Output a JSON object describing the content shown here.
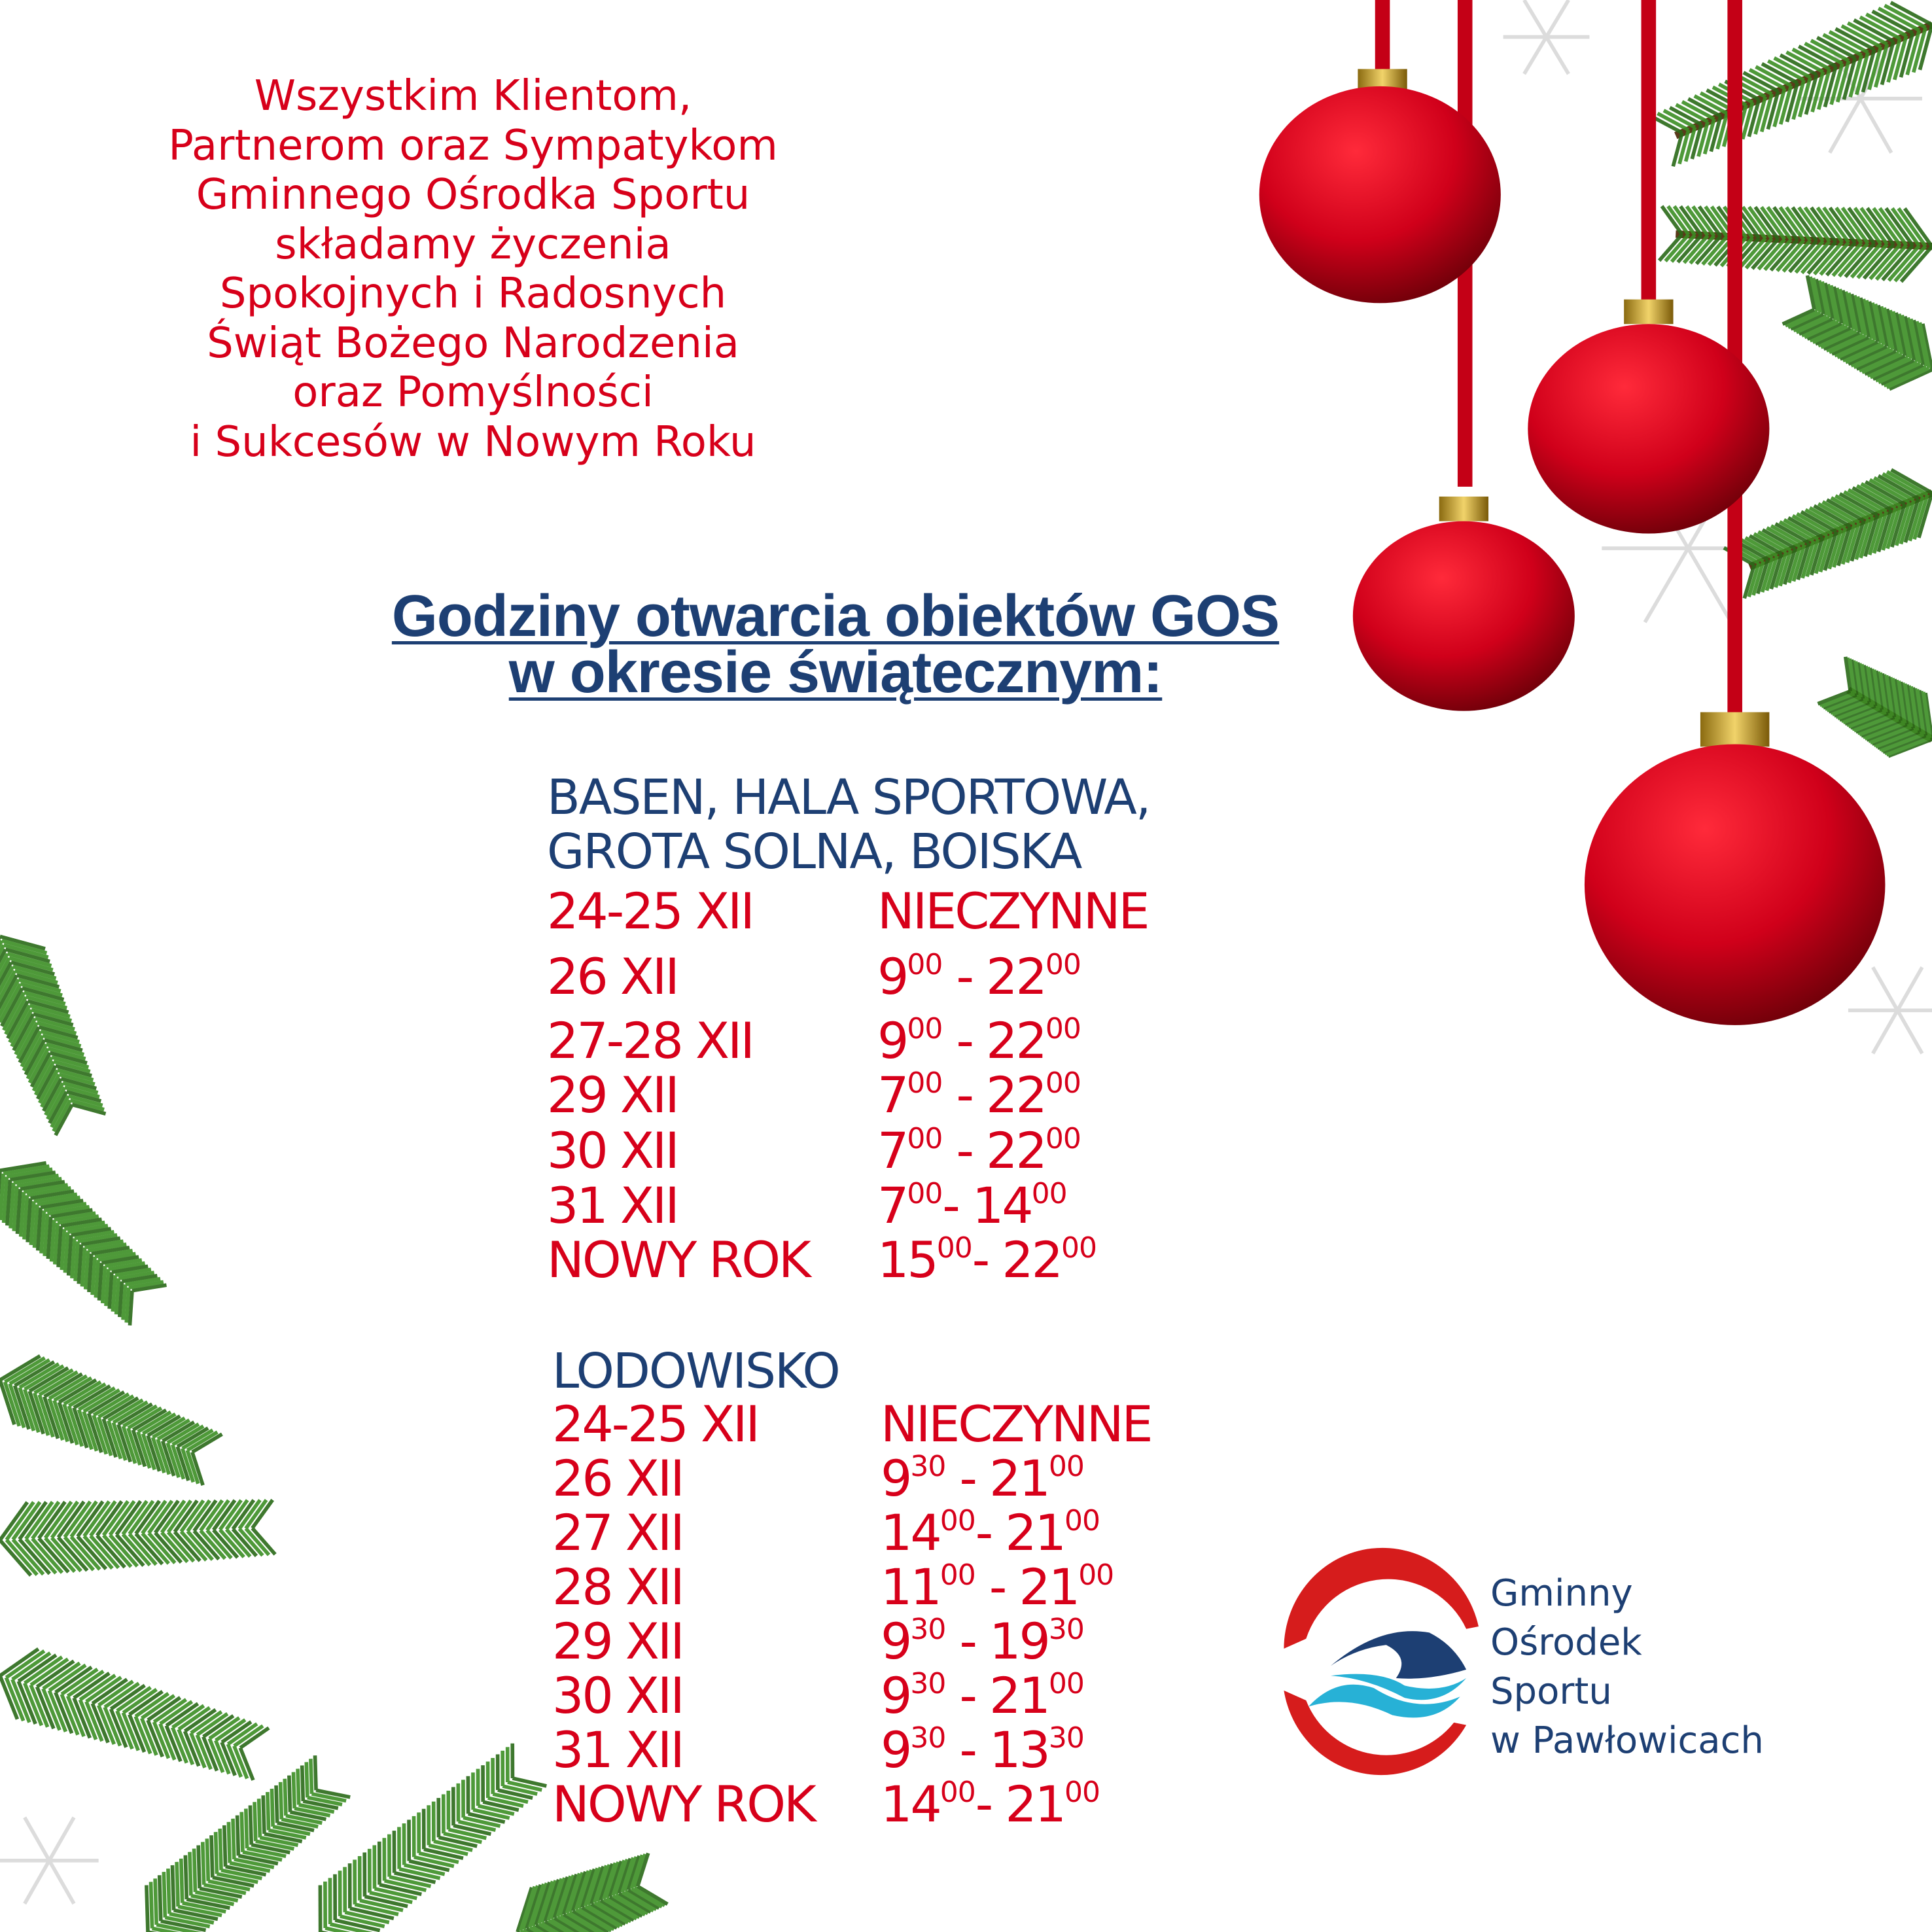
{
  "greeting": {
    "lines": [
      "Wszystkim Klientom,",
      "Partnerom oraz Sympatykom",
      "Gminnego Ośrodka Sportu",
      "składamy życzenia",
      "Spokojnych i Radosnych",
      "Świąt Bożego Narodzenia",
      "oraz Pomyślności",
      "i Sukcesów w Nowym Roku"
    ]
  },
  "title": {
    "line1": "Godziny otwarcia obiektów GOS",
    "line2": "w okresie świątecznym:"
  },
  "sections": [
    {
      "heading": [
        "BASEN, HALA SPORTOWA,",
        "GROTA SOLNA, BOISKA"
      ],
      "rows": [
        {
          "date": "24-25 XII",
          "closed": "NIECZYNNE"
        },
        {
          "date": "26 XII",
          "start": "9",
          "start_min": "00",
          "sep": " - ",
          "end": "22",
          "end_min": "00"
        },
        {
          "date": "27-28 XII",
          "start": "9",
          "start_min": "00",
          "sep": " - ",
          "end": "22",
          "end_min": "00"
        },
        {
          "date": "29 XII",
          "start": "7",
          "start_min": "00",
          "sep": " - ",
          "end": "22",
          "end_min": "00"
        },
        {
          "date": "30 XII",
          "start": "7",
          "start_min": "00",
          "sep": " - ",
          "end": "22",
          "end_min": "00"
        },
        {
          "date": "31 XII",
          "start": "7",
          "start_min": "00",
          "sep": "- ",
          "end": "14",
          "end_min": "00"
        },
        {
          "date": "NOWY ROK",
          "start": "15",
          "start_min": "00",
          "sep": "- ",
          "end": "22",
          "end_min": "00"
        }
      ]
    },
    {
      "heading": [
        "LODOWISKO"
      ],
      "rows": [
        {
          "date": "24-25 XII",
          "closed": "NIECZYNNE"
        },
        {
          "date": "26 XII",
          "start": "9",
          "start_min": "30",
          "sep": " - ",
          "end": "21",
          "end_min": "00"
        },
        {
          "date": "27 XII",
          "start": "14",
          "start_min": "00",
          "sep": "- ",
          "end": "21",
          "end_min": "00"
        },
        {
          "date": "28 XII",
          "start": "11",
          "start_min": "00",
          "sep": " - ",
          "end": "21",
          "end_min": "00"
        },
        {
          "date": "29 XII",
          "start": "9",
          "start_min": "30",
          "sep": " - ",
          "end": "19",
          "end_min": "30"
        },
        {
          "date": "30 XII",
          "start": "9",
          "start_min": "30",
          "sep": " - ",
          "end": "21",
          "end_min": "00"
        },
        {
          "date": "31 XII",
          "start": "9",
          "start_min": "30",
          "sep": " - ",
          "end": "13",
          "end_min": "30"
        },
        {
          "date": "NOWY ROK",
          "start": "14",
          "start_min": "00",
          "sep": "- ",
          "end": "21",
          "end_min": "00"
        }
      ]
    }
  ],
  "logo": {
    "lines": [
      "Gminny",
      "Ośrodek",
      "Sportu",
      "w Pawłowicach"
    ]
  },
  "colors": {
    "red": "#d7001a",
    "navy": "#1d3f73",
    "wave": "#27b1d6",
    "green": "#2f7d1e"
  },
  "decor_icons": [
    "christmas-bauble-icon",
    "pine-branch-icon",
    "snowflake-icon"
  ]
}
